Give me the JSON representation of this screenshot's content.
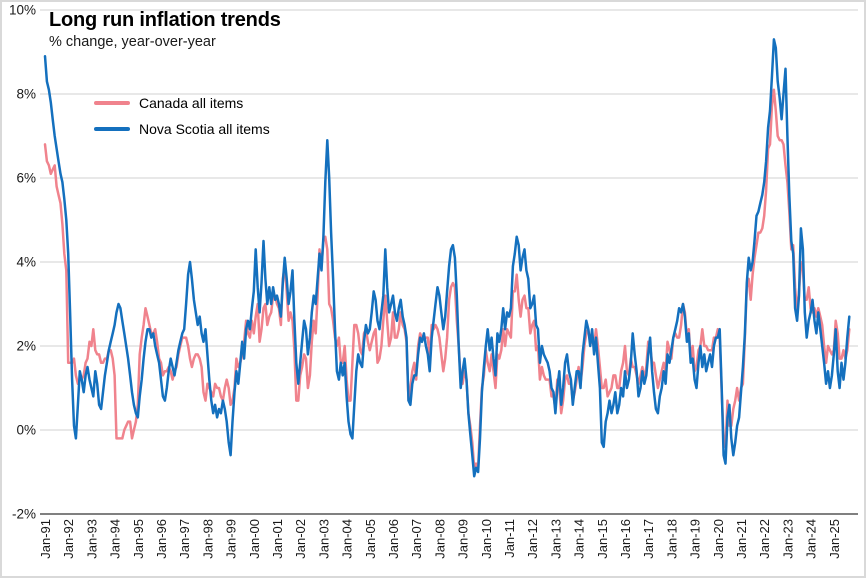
{
  "chart_data": {
    "type": "line",
    "title": "Long run inflation trends",
    "subtitle": "% change, year-over-year",
    "frequency": "monthly",
    "x_start_label": "Jan-91",
    "x_end_label": "Sep-25",
    "grid": "horizontal",
    "legend_position": "top-left-inside",
    "x_tick_labels": [
      "Jan-91",
      "Jan-92",
      "Jan-93",
      "Jan-94",
      "Jan-95",
      "Jan-96",
      "Jan-97",
      "Jan-98",
      "Jan-99",
      "Jan-00",
      "Jan-01",
      "Jan-02",
      "Jan-03",
      "Jan-04",
      "Jan-05",
      "Jan-06",
      "Jan-07",
      "Jan-08",
      "Jan-09",
      "Jan-10",
      "Jan-11",
      "Jan-12",
      "Jan-13",
      "Jan-14",
      "Jan-15",
      "Jan-16",
      "Jan-17",
      "Jan-18",
      "Jan-19",
      "Jan-20",
      "Jan-21",
      "Jan-22",
      "Jan-23",
      "Jan-24",
      "Jan-25"
    ],
    "y_axis": {
      "ticks": [
        10,
        8,
        6,
        4,
        2,
        0,
        -2
      ],
      "labels": [
        "10%",
        "8%",
        "6%",
        "4%",
        "2%",
        "0%",
        "-2%"
      ],
      "lim": [
        -2,
        10
      ]
    },
    "series": [
      {
        "name": "Canada all items",
        "color": "#f0838d",
        "values": [
          6.8,
          6.4,
          6.3,
          6.1,
          6.2,
          6.3,
          5.8,
          5.6,
          5.4,
          4.9,
          4.2,
          3.8,
          1.6,
          1.6,
          1.6,
          1.7,
          1.3,
          1.1,
          1.2,
          1.2,
          1.3,
          1.6,
          1.7,
          2.1,
          2.0,
          2.4,
          1.9,
          1.8,
          1.8,
          1.6,
          1.6,
          1.7,
          1.7,
          1.9,
          1.9,
          1.7,
          1.3,
          -0.2,
          -0.2,
          -0.2,
          -0.2,
          0.0,
          0.1,
          0.2,
          0.2,
          -0.2,
          0.0,
          0.2,
          0.6,
          1.8,
          2.2,
          2.5,
          2.9,
          2.7,
          2.5,
          2.3,
          2.3,
          2.4,
          2.1,
          1.7,
          1.6,
          1.3,
          1.4,
          1.4,
          1.5,
          1.4,
          1.2,
          1.4,
          1.5,
          1.8,
          2.0,
          2.2,
          2.2,
          2.2,
          2.0,
          1.7,
          1.5,
          1.7,
          1.8,
          1.8,
          1.7,
          1.5,
          0.9,
          0.7,
          1.1,
          1.0,
          0.9,
          0.8,
          1.1,
          1.0,
          1.0,
          0.8,
          0.7,
          1.0,
          1.2,
          1.0,
          0.6,
          0.7,
          1.0,
          1.7,
          1.5,
          1.6,
          1.8,
          2.1,
          2.6,
          2.3,
          2.2,
          2.6,
          2.3,
          2.7,
          3.0,
          2.1,
          2.4,
          2.9,
          3.0,
          2.5,
          2.7,
          2.8,
          3.2,
          3.2,
          3.0,
          2.9,
          2.5,
          3.6,
          3.9,
          3.3,
          2.6,
          2.8,
          2.6,
          1.9,
          0.7,
          0.7,
          1.3,
          1.5,
          1.8,
          1.7,
          1.0,
          1.3,
          2.1,
          2.6,
          2.3,
          3.2,
          4.3,
          3.9,
          4.5,
          4.6,
          4.3,
          3.0,
          2.9,
          2.6,
          2.2,
          2.0,
          2.2,
          1.6,
          1.6,
          2.0,
          1.2,
          0.7,
          0.7,
          1.6,
          2.5,
          2.5,
          2.3,
          1.9,
          1.8,
          2.3,
          2.4,
          2.1,
          1.9,
          2.1,
          2.3,
          2.4,
          1.6,
          1.7,
          2.0,
          2.6,
          3.2,
          2.6,
          2.0,
          2.2,
          2.8,
          2.2,
          2.2,
          2.4,
          2.8,
          2.5,
          2.4,
          2.1,
          0.7,
          1.0,
          1.4,
          1.6,
          1.2,
          2.0,
          2.3,
          2.2,
          2.2,
          2.2,
          2.2,
          1.7,
          2.5,
          2.4,
          2.5,
          2.4,
          2.2,
          1.8,
          1.4,
          1.7,
          2.2,
          3.1,
          3.4,
          3.5,
          3.4,
          2.6,
          2.0,
          1.2,
          1.1,
          1.4,
          1.2,
          0.4,
          0.1,
          -0.3,
          -0.9,
          -0.8,
          -0.9,
          0.1,
          1.0,
          1.3,
          1.9,
          1.6,
          1.4,
          1.8,
          1.4,
          1.0,
          1.8,
          1.7,
          1.9,
          2.4,
          2.0,
          2.4,
          2.3,
          2.2,
          3.3,
          3.3,
          3.7,
          3.1,
          2.7,
          3.1,
          3.2,
          2.9,
          2.9,
          2.3,
          2.5,
          2.6,
          1.9,
          2.0,
          1.2,
          1.5,
          1.3,
          1.2,
          1.2,
          1.2,
          0.8,
          0.8,
          0.5,
          1.2,
          1.0,
          0.4,
          0.7,
          1.2,
          1.3,
          1.1,
          1.1,
          0.7,
          0.9,
          1.2,
          1.5,
          1.1,
          1.5,
          2.0,
          2.3,
          2.4,
          2.1,
          2.1,
          2.0,
          2.4,
          2.0,
          1.5,
          1.0,
          1.0,
          1.2,
          0.8,
          0.9,
          1.0,
          1.3,
          1.3,
          1.0,
          1.0,
          1.4,
          1.6,
          2.0,
          1.4,
          1.3,
          1.7,
          1.5,
          1.5,
          1.3,
          1.1,
          1.3,
          1.5,
          1.2,
          1.5,
          2.1,
          2.0,
          1.6,
          1.6,
          1.3,
          1.0,
          1.2,
          1.4,
          1.6,
          1.4,
          2.1,
          1.9,
          1.7,
          2.2,
          2.3,
          2.2,
          2.2,
          2.5,
          3.0,
          2.8,
          2.2,
          2.4,
          1.7,
          2.0,
          1.4,
          1.5,
          1.9,
          2.0,
          2.4,
          2.0,
          2.0,
          1.9,
          1.9,
          1.9,
          2.2,
          2.2,
          2.4,
          2.2,
          0.9,
          -0.2,
          -0.4,
          0.7,
          0.1,
          0.1,
          0.5,
          0.7,
          1.0,
          0.7,
          1.0,
          1.1,
          2.2,
          3.4,
          3.6,
          3.1,
          3.7,
          4.1,
          4.4,
          4.7,
          4.7,
          4.8,
          5.1,
          5.7,
          6.7,
          6.8,
          7.7,
          8.1,
          7.6,
          7.0,
          6.9,
          6.9,
          6.8,
          6.3,
          5.9,
          5.2,
          4.3,
          4.4,
          3.4,
          2.8,
          3.3,
          4.0,
          3.8,
          3.1,
          3.1,
          3.4,
          2.9,
          2.8,
          2.9,
          2.7,
          2.9,
          2.7,
          2.5,
          2.0,
          1.6,
          2.0,
          1.9,
          1.8,
          1.9,
          2.6,
          2.3,
          1.7,
          1.7,
          1.9,
          1.7,
          1.9,
          2.4
        ]
      },
      {
        "name": "Nova Scotia all items",
        "color": "#1470be",
        "values": [
          8.9,
          8.3,
          8.1,
          7.8,
          7.4,
          7.0,
          6.7,
          6.4,
          6.1,
          5.9,
          5.5,
          5.0,
          4.2,
          2.8,
          1.2,
          0.1,
          -0.2,
          0.6,
          1.4,
          1.2,
          0.9,
          1.3,
          1.5,
          1.2,
          1.0,
          0.8,
          1.4,
          1.1,
          0.6,
          0.5,
          0.9,
          1.3,
          1.6,
          1.9,
          2.1,
          2.3,
          2.5,
          2.8,
          3.0,
          2.9,
          2.6,
          2.3,
          2.0,
          1.7,
          1.3,
          0.9,
          0.6,
          0.4,
          0.3,
          0.8,
          1.2,
          1.7,
          2.1,
          2.4,
          2.4,
          2.2,
          2.3,
          2.0,
          1.8,
          1.6,
          1.2,
          0.8,
          0.7,
          1.0,
          1.4,
          1.7,
          1.5,
          1.3,
          1.6,
          1.9,
          2.1,
          2.3,
          2.4,
          3.0,
          3.7,
          4.0,
          3.6,
          3.1,
          2.8,
          2.5,
          2.7,
          2.3,
          2.1,
          2.4,
          1.8,
          1.2,
          0.7,
          0.4,
          0.6,
          0.3,
          0.5,
          0.4,
          0.7,
          0.5,
          0.2,
          -0.3,
          -0.6,
          0.2,
          0.9,
          1.4,
          1.1,
          1.6,
          2.1,
          1.7,
          2.4,
          2.6,
          2.4,
          2.9,
          3.3,
          4.3,
          3.4,
          2.8,
          3.5,
          4.5,
          3.6,
          3.0,
          3.4,
          3.0,
          3.4,
          3.1,
          3.2,
          3.0,
          2.7,
          3.5,
          4.1,
          3.6,
          3.0,
          3.3,
          3.8,
          2.6,
          1.6,
          1.1,
          1.6,
          2.1,
          2.6,
          2.4,
          1.8,
          2.2,
          2.8,
          3.2,
          3.0,
          3.6,
          4.2,
          3.8,
          4.6,
          5.9,
          6.9,
          6.0,
          4.7,
          3.6,
          2.4,
          1.4,
          1.2,
          1.6,
          1.3,
          1.6,
          0.8,
          0.2,
          -0.1,
          -0.2,
          0.6,
          1.4,
          1.8,
          1.6,
          1.5,
          2.1,
          2.5,
          2.3,
          2.4,
          2.8,
          3.3,
          3.1,
          2.6,
          2.4,
          2.8,
          3.2,
          4.3,
          3.4,
          2.8,
          3.0,
          3.2,
          2.8,
          2.6,
          2.9,
          3.1,
          2.7,
          2.5,
          2.2,
          0.7,
          0.6,
          1.1,
          1.3,
          1.3,
          1.8,
          2.2,
          2.1,
          2.3,
          2.0,
          1.8,
          1.4,
          2.2,
          2.6,
          3.0,
          3.4,
          3.2,
          2.8,
          2.4,
          2.7,
          3.3,
          3.9,
          4.3,
          4.4,
          4.1,
          3.2,
          2.0,
          1.0,
          1.4,
          1.7,
          1.2,
          0.4,
          -0.1,
          -0.6,
          -1.1,
          -0.9,
          -1.0,
          -0.2,
          0.9,
          1.5,
          2.0,
          2.4,
          1.9,
          2.2,
          1.7,
          1.3,
          2.3,
          2.1,
          2.4,
          2.9,
          2.4,
          2.8,
          2.7,
          2.9,
          3.9,
          4.2,
          4.6,
          4.4,
          3.8,
          4.1,
          4.3,
          3.8,
          3.6,
          2.9,
          3.0,
          3.2,
          2.5,
          2.4,
          1.6,
          2.0,
          1.8,
          1.7,
          1.6,
          1.4,
          1.0,
          0.9,
          0.4,
          1.0,
          1.4,
          0.6,
          1.0,
          1.6,
          1.8,
          1.4,
          1.2,
          0.6,
          1.0,
          1.4,
          1.4,
          1.0,
          1.8,
          2.2,
          2.6,
          2.4,
          2.0,
          2.4,
          1.8,
          2.2,
          1.6,
          1.0,
          -0.3,
          -0.4,
          0.2,
          0.4,
          0.7,
          0.4,
          0.6,
          0.9,
          0.4,
          0.6,
          1.0,
          0.8,
          1.4,
          1.0,
          1.2,
          1.6,
          2.3,
          1.8,
          1.4,
          0.8,
          1.0,
          1.4,
          1.1,
          1.3,
          1.8,
          2.2,
          1.4,
          0.9,
          0.5,
          0.4,
          0.8,
          1.0,
          1.4,
          1.1,
          1.8,
          1.6,
          1.9,
          2.2,
          2.4,
          2.6,
          2.9,
          2.8,
          3.0,
          2.7,
          2.1,
          2.3,
          1.6,
          1.7,
          1.2,
          1.0,
          1.6,
          2.0,
          1.5,
          1.8,
          1.4,
          1.6,
          1.8,
          1.5,
          2.0,
          2.2,
          2.2,
          2.4,
          1.0,
          -0.6,
          -0.8,
          0.3,
          0.6,
          -0.2,
          -0.6,
          -0.3,
          0.1,
          0.3,
          0.9,
          1.5,
          2.3,
          3.5,
          4.1,
          3.8,
          4.0,
          4.5,
          5.1,
          5.2,
          5.4,
          5.6,
          5.9,
          6.4,
          7.2,
          7.6,
          8.4,
          9.3,
          9.1,
          8.3,
          7.9,
          7.4,
          8.0,
          8.6,
          7.0,
          5.6,
          4.5,
          4.2,
          2.9,
          2.6,
          3.2,
          4.8,
          4.3,
          2.8,
          2.2,
          2.6,
          2.8,
          3.1,
          2.6,
          2.3,
          2.8,
          2.4,
          2.0,
          1.6,
          1.1,
          1.4,
          1.0,
          1.3,
          1.8,
          2.4,
          1.4,
          1.0,
          1.6,
          1.2,
          1.6,
          2.2,
          2.7
        ]
      }
    ],
    "colors": {
      "gridline": "#d9d9d9",
      "axis_line": "#595959",
      "tick_text": "#1a1a1a",
      "border": "#d9d9d9"
    }
  }
}
